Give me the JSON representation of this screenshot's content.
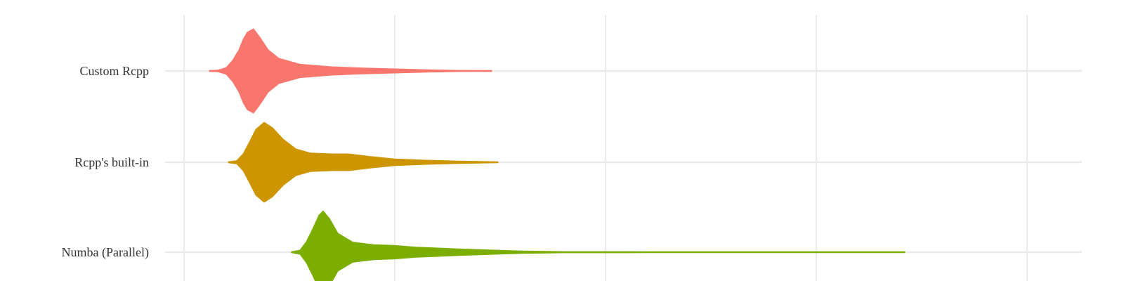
{
  "chart_data": {
    "type": "violin",
    "orientation": "horizontal",
    "title": "",
    "xlabel": "",
    "ylabel": "",
    "grid": true,
    "legend": "none",
    "xlim": [
      0,
      5.1
    ],
    "x_gridlines": [
      0,
      1,
      2,
      3,
      4
    ],
    "categories": [
      "Custom Rcpp",
      "Rcpp's built-in",
      "Numba (Parallel)"
    ],
    "series": [
      {
        "color": "#F8766D",
        "min": 0.12,
        "max": 1.46,
        "density": [
          [
            0.12,
            0
          ],
          [
            0.16,
            0.02
          ],
          [
            0.2,
            0.08
          ],
          [
            0.23,
            0.25
          ],
          [
            0.26,
            0.5
          ],
          [
            0.28,
            0.75
          ],
          [
            0.3,
            0.92
          ],
          [
            0.33,
            1.0
          ],
          [
            0.36,
            0.8
          ],
          [
            0.4,
            0.5
          ],
          [
            0.45,
            0.3
          ],
          [
            0.55,
            0.16
          ],
          [
            0.7,
            0.1
          ],
          [
            0.85,
            0.07
          ],
          [
            1.0,
            0.05
          ],
          [
            1.15,
            0.03
          ],
          [
            1.3,
            0.015
          ],
          [
            1.46,
            0
          ]
        ]
      },
      {
        "color": "#CD9600",
        "min": 0.21,
        "max": 1.49,
        "density": [
          [
            0.21,
            0
          ],
          [
            0.25,
            0.04
          ],
          [
            0.28,
            0.2
          ],
          [
            0.31,
            0.48
          ],
          [
            0.34,
            0.78
          ],
          [
            0.38,
            0.95
          ],
          [
            0.42,
            0.82
          ],
          [
            0.47,
            0.55
          ],
          [
            0.53,
            0.32
          ],
          [
            0.6,
            0.22
          ],
          [
            0.7,
            0.2
          ],
          [
            0.78,
            0.2
          ],
          [
            0.88,
            0.14
          ],
          [
            1.0,
            0.08
          ],
          [
            1.15,
            0.05
          ],
          [
            1.3,
            0.03
          ],
          [
            1.49,
            0
          ]
        ]
      },
      {
        "color": "#7CAE00",
        "min": 0.51,
        "max": 3.42,
        "density": [
          [
            0.51,
            0
          ],
          [
            0.55,
            0.05
          ],
          [
            0.58,
            0.25
          ],
          [
            0.61,
            0.55
          ],
          [
            0.64,
            0.88
          ],
          [
            0.66,
            0.98
          ],
          [
            0.69,
            0.8
          ],
          [
            0.73,
            0.45
          ],
          [
            0.8,
            0.24
          ],
          [
            0.9,
            0.18
          ],
          [
            1.0,
            0.16
          ],
          [
            1.1,
            0.12
          ],
          [
            1.3,
            0.08
          ],
          [
            1.6,
            0.03
          ],
          [
            1.8,
            0.015
          ],
          [
            2.2,
            0.01
          ],
          [
            2.8,
            0.008
          ],
          [
            3.42,
            0
          ]
        ]
      }
    ]
  }
}
